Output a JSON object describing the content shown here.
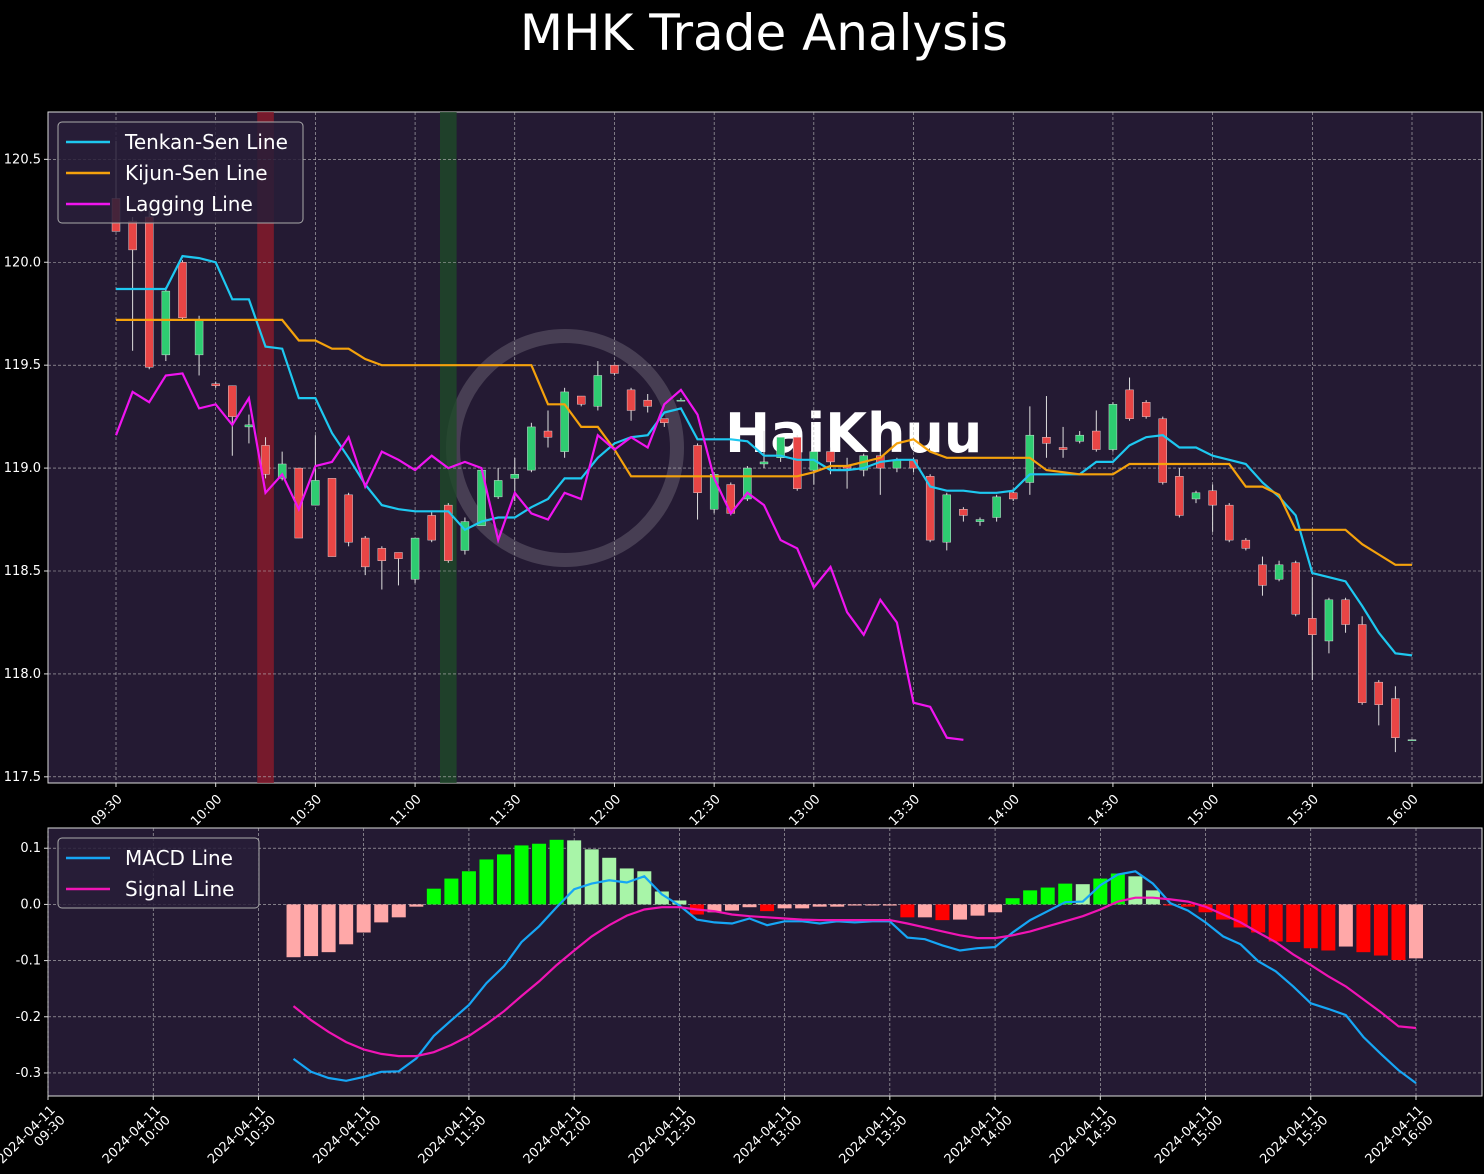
{
  "chart_data": [
    {
      "type": "candlestick",
      "title": "MHK Trade Analysis",
      "watermark": "HaiKhuu",
      "x": [
        "09:30",
        "09:35",
        "09:40",
        "09:45",
        "09:50",
        "09:55",
        "10:00",
        "10:05",
        "10:10",
        "10:15",
        "10:20",
        "10:25",
        "10:30",
        "10:35",
        "10:40",
        "10:45",
        "10:50",
        "10:55",
        "11:00",
        "11:05",
        "11:10",
        "11:15",
        "11:20",
        "11:25",
        "11:30",
        "11:35",
        "11:40",
        "11:45",
        "11:50",
        "11:55",
        "12:00",
        "12:05",
        "12:10",
        "12:15",
        "12:20",
        "12:25",
        "12:30",
        "12:35",
        "12:40",
        "12:45",
        "12:50",
        "12:55",
        "13:00",
        "13:05",
        "13:10",
        "13:15",
        "13:20",
        "13:25",
        "13:30",
        "13:35",
        "13:40",
        "13:45",
        "13:50",
        "13:55",
        "14:00",
        "14:05",
        "14:10",
        "14:15",
        "14:20",
        "14:25",
        "14:30",
        "14:35",
        "14:40",
        "14:45",
        "14:50",
        "14:55",
        "15:00",
        "15:05",
        "15:10",
        "15:15",
        "15:20",
        "15:25",
        "15:30",
        "15:35",
        "15:40",
        "15:45",
        "15:50",
        "15:55",
        "16:00"
      ],
      "open": [
        120.31,
        120.2,
        120.22,
        119.55,
        120.0,
        119.55,
        119.41,
        119.4,
        119.2,
        119.11,
        118.95,
        119.0,
        118.82,
        118.95,
        118.87,
        118.66,
        118.61,
        118.59,
        118.46,
        118.77,
        118.82,
        118.6,
        118.72,
        118.86,
        118.95,
        118.99,
        119.18,
        119.08,
        119.35,
        119.3,
        119.5,
        119.38,
        119.33,
        119.24,
        119.33,
        119.11,
        118.8,
        118.92,
        118.85,
        119.02,
        119.05,
        119.15,
        118.99,
        119.08,
        119.01,
        118.99,
        119.06,
        119.0,
        119.04,
        118.96,
        118.64,
        118.8,
        118.74,
        118.76,
        118.88,
        118.93,
        119.15,
        119.1,
        119.13,
        119.18,
        119.09,
        119.38,
        119.32,
        119.24,
        118.96,
        118.85,
        118.89,
        118.82,
        118.65,
        118.53,
        118.46,
        118.54,
        118.27,
        118.16,
        118.36,
        118.24,
        117.96,
        117.88,
        117.68
      ],
      "high": [
        120.59,
        120.22,
        120.25,
        119.88,
        120.01,
        119.74,
        119.42,
        119.4,
        119.26,
        119.15,
        119.08,
        119.0,
        119.16,
        118.95,
        118.88,
        118.67,
        118.62,
        118.59,
        118.66,
        118.79,
        118.83,
        118.76,
        119.0,
        119.0,
        119.05,
        119.22,
        119.28,
        119.39,
        119.35,
        119.52,
        119.5,
        119.39,
        119.36,
        119.24,
        119.34,
        119.12,
        118.98,
        118.93,
        119.01,
        119.18,
        119.15,
        119.16,
        119.09,
        119.1,
        119.05,
        119.07,
        119.08,
        119.05,
        119.05,
        118.97,
        118.88,
        118.81,
        118.76,
        118.87,
        118.9,
        119.3,
        119.35,
        119.2,
        119.18,
        119.28,
        119.32,
        119.44,
        119.33,
        119.25,
        119.0,
        118.89,
        118.92,
        118.83,
        118.66,
        118.57,
        118.55,
        118.55,
        118.47,
        118.37,
        118.37,
        118.28,
        117.97,
        117.94,
        117.68
      ],
      "low": [
        120.15,
        119.57,
        119.48,
        119.52,
        119.72,
        119.45,
        119.39,
        119.06,
        119.12,
        118.95,
        118.94,
        118.66,
        118.82,
        118.57,
        118.62,
        118.48,
        118.41,
        118.43,
        118.44,
        118.64,
        118.54,
        118.58,
        118.72,
        118.85,
        118.84,
        118.98,
        119.1,
        119.05,
        119.3,
        119.28,
        119.45,
        119.23,
        119.27,
        119.2,
        119.33,
        118.75,
        118.78,
        118.77,
        118.84,
        119.0,
        119.03,
        118.89,
        118.92,
        118.97,
        118.9,
        118.96,
        118.87,
        118.98,
        118.98,
        118.64,
        118.6,
        118.74,
        118.72,
        118.74,
        118.84,
        118.87,
        119.05,
        119.05,
        119.12,
        119.08,
        119.08,
        119.23,
        119.24,
        118.92,
        118.76,
        118.83,
        118.69,
        118.64,
        118.6,
        118.38,
        118.45,
        118.28,
        117.97,
        118.1,
        118.2,
        117.85,
        117.75,
        117.62,
        117.68
      ],
      "close": [
        120.15,
        120.06,
        119.49,
        119.86,
        119.73,
        119.72,
        119.4,
        119.25,
        119.21,
        118.97,
        119.02,
        118.66,
        118.94,
        118.57,
        118.64,
        118.52,
        118.55,
        118.56,
        118.66,
        118.65,
        118.55,
        118.74,
        118.99,
        118.94,
        118.97,
        119.2,
        119.15,
        119.37,
        119.31,
        119.45,
        119.46,
        119.28,
        119.3,
        119.22,
        119.33,
        118.88,
        118.97,
        118.78,
        119.0,
        119.03,
        119.15,
        118.9,
        119.08,
        119.03,
        119.0,
        119.06,
        119.0,
        119.04,
        119.0,
        118.65,
        118.87,
        118.77,
        118.75,
        118.86,
        118.85,
        119.16,
        119.12,
        119.09,
        119.16,
        119.09,
        119.31,
        119.24,
        119.25,
        118.93,
        118.77,
        118.88,
        118.82,
        118.65,
        118.61,
        118.43,
        118.53,
        118.29,
        118.19,
        118.36,
        118.24,
        117.86,
        117.85,
        117.69,
        117.68
      ],
      "up_color": "#2ecc71",
      "down_color": "#e84545",
      "series": [
        {
          "name": "Tenkan-Sen Line",
          "color": "#1ec8f0",
          "values": [
            119.87,
            119.87,
            119.87,
            119.87,
            120.03,
            120.02,
            120.0,
            119.82,
            119.82,
            119.59,
            119.58,
            119.34,
            119.34,
            119.17,
            119.05,
            118.92,
            118.82,
            118.8,
            118.79,
            118.79,
            118.79,
            118.7,
            118.74,
            118.76,
            118.76,
            118.81,
            118.85,
            118.95,
            118.95,
            119.05,
            119.12,
            119.15,
            119.16,
            119.27,
            119.29,
            119.14,
            119.14,
            119.14,
            119.13,
            119.06,
            119.06,
            119.04,
            119.04,
            118.99,
            118.99,
            119.0,
            119.03,
            119.04,
            119.04,
            118.91,
            118.89,
            118.89,
            118.88,
            118.88,
            118.89,
            118.97,
            118.97,
            118.97,
            118.97,
            119.03,
            119.03,
            119.11,
            119.15,
            119.16,
            119.1,
            119.1,
            119.06,
            119.04,
            119.02,
            118.93,
            118.86,
            118.77,
            118.49,
            118.47,
            118.45,
            118.33,
            118.2,
            118.1,
            118.09
          ]
        },
        {
          "name": "Kijun-Sen Line",
          "color": "#f5a20c",
          "values": [
            119.72,
            119.72,
            119.72,
            119.72,
            119.72,
            119.72,
            119.72,
            119.72,
            119.72,
            119.72,
            119.72,
            119.62,
            119.62,
            119.58,
            119.58,
            119.53,
            119.5,
            119.5,
            119.5,
            119.5,
            119.5,
            119.5,
            119.5,
            119.5,
            119.5,
            119.5,
            119.31,
            119.31,
            119.2,
            119.2,
            119.09,
            118.96,
            118.96,
            118.96,
            118.96,
            118.96,
            118.96,
            118.96,
            118.96,
            118.96,
            118.96,
            118.96,
            118.98,
            119.01,
            119.01,
            119.03,
            119.05,
            119.12,
            119.14,
            119.08,
            119.05,
            119.05,
            119.05,
            119.05,
            119.05,
            119.05,
            118.99,
            118.98,
            118.97,
            118.97,
            118.97,
            119.02,
            119.02,
            119.02,
            119.02,
            119.02,
            119.02,
            119.02,
            118.91,
            118.91,
            118.87,
            118.7,
            118.7,
            118.7,
            118.7,
            118.63,
            118.58,
            118.53,
            118.53
          ]
        },
        {
          "name": "Lagging Line",
          "color": "#f014f0",
          "values": [
            119.16,
            119.37,
            119.32,
            119.45,
            119.46,
            119.29,
            119.31,
            119.21,
            119.34,
            118.88,
            118.97,
            118.8,
            119.01,
            119.03,
            119.15,
            118.91,
            119.08,
            119.04,
            118.99,
            119.06,
            119.0,
            119.03,
            119.0,
            118.65,
            118.88,
            118.78,
            118.75,
            118.88,
            118.85,
            119.16,
            119.09,
            119.15,
            119.1,
            119.31,
            119.38,
            119.26,
            118.95,
            118.78,
            118.88,
            118.82,
            118.65,
            118.61,
            118.42,
            118.52,
            118.3,
            118.19,
            118.36,
            118.25,
            117.86,
            117.84,
            117.69,
            117.68,
            null,
            null,
            null,
            null,
            null,
            null,
            null,
            null,
            null,
            null,
            null,
            null,
            null,
            null,
            null,
            null,
            null,
            null,
            null,
            null,
            null,
            null,
            null,
            null,
            null,
            null,
            null
          ]
        }
      ],
      "highlights": [
        {
          "x": "10:15",
          "color": "#8b1a2b"
        },
        {
          "x": "11:10",
          "color": "#1e4a28"
        }
      ],
      "ylim": [
        117.47,
        120.73
      ],
      "yticks": [
        117.5,
        {
          "value": 118,
          "label": "118.0"
        },
        118.5,
        {
          "value": 119,
          "label": "119.0"
        },
        119.5,
        {
          "value": 120,
          "label": "120.0"
        },
        120.5
      ],
      "xticks": [
        "09:30",
        "10:00",
        "10:30",
        "11:00",
        "11:30",
        "12:00",
        "12:30",
        "13:00",
        "13:30",
        "14:00",
        "14:30",
        "15:00",
        "15:30",
        "16:00"
      ],
      "grid": true,
      "legend": "upper left"
    },
    {
      "type": "macd",
      "date": "2024-04-11",
      "x": [
        "09:30",
        "09:35",
        "09:40",
        "09:45",
        "09:50",
        "09:55",
        "10:00",
        "10:05",
        "10:10",
        "10:15",
        "10:20",
        "10:25",
        "10:30",
        "10:35",
        "10:40",
        "10:45",
        "10:50",
        "10:55",
        "11:00",
        "11:05",
        "11:10",
        "11:15",
        "11:20",
        "11:25",
        "11:30",
        "11:35",
        "11:40",
        "11:45",
        "11:50",
        "11:55",
        "12:00",
        "12:05",
        "12:10",
        "12:15",
        "12:20",
        "12:25",
        "12:30",
        "12:35",
        "12:40",
        "12:45",
        "12:50",
        "12:55",
        "13:00",
        "13:05",
        "13:10",
        "13:15",
        "13:20",
        "13:25",
        "13:30",
        "13:35",
        "13:40",
        "13:45",
        "13:50",
        "13:55",
        "14:00",
        "14:05",
        "14:10",
        "14:15",
        "14:20",
        "14:25",
        "14:30",
        "14:35",
        "14:40",
        "14:45",
        "14:50",
        "14:55",
        "15:00",
        "15:05",
        "15:10",
        "15:15",
        "15:20",
        "15:25",
        "15:30",
        "15:35",
        "15:40",
        "15:45",
        "15:50",
        "15:55",
        "16:00"
      ],
      "histogram": {
        "values": [
          null,
          null,
          null,
          null,
          null,
          null,
          null,
          null,
          null,
          null,
          null,
          null,
          null,
          null,
          -0.094,
          -0.092,
          -0.085,
          -0.071,
          -0.05,
          -0.032,
          -0.023,
          -0.004,
          0.028,
          0.046,
          0.059,
          0.08,
          0.089,
          0.105,
          0.108,
          0.115,
          0.114,
          0.098,
          0.083,
          0.064,
          0.059,
          0.023,
          0.007,
          -0.018,
          -0.014,
          -0.011,
          -0.005,
          -0.012,
          -0.007,
          -0.007,
          -0.004,
          -0.004,
          -0.002,
          -0.002,
          -0.002,
          -0.023,
          -0.023,
          -0.028,
          -0.027,
          -0.02,
          -0.014,
          0.011,
          0.025,
          0.03,
          0.037,
          0.036,
          0.046,
          0.055,
          0.05,
          0.025,
          -0.002,
          -0.004,
          -0.014,
          -0.027,
          -0.041,
          -0.05,
          -0.066,
          -0.067,
          -0.078,
          -0.082,
          -0.075,
          -0.085,
          -0.091,
          -0.099,
          -0.096
        ],
        "colors": {
          "pos_up": "#00ff00",
          "pos_down": "#a8f5a8",
          "neg_down": "#ff0000",
          "neg_up": "#ffa8a8"
        }
      },
      "series": [
        {
          "name": "MACD Line",
          "color": "#16a6f5",
          "values": [
            null,
            null,
            null,
            null,
            null,
            null,
            null,
            null,
            null,
            null,
            null,
            null,
            null,
            null,
            -0.275,
            -0.298,
            -0.309,
            -0.314,
            -0.307,
            -0.298,
            -0.297,
            -0.274,
            -0.234,
            -0.206,
            -0.179,
            -0.14,
            -0.11,
            -0.067,
            -0.039,
            -0.005,
            0.027,
            0.037,
            0.043,
            0.039,
            0.05,
            0.018,
            -0.002,
            -0.027,
            -0.032,
            -0.034,
            -0.025,
            -0.037,
            -0.03,
            -0.03,
            -0.034,
            -0.03,
            -0.032,
            -0.03,
            -0.03,
            -0.059,
            -0.062,
            -0.073,
            -0.082,
            -0.078,
            -0.076,
            -0.05,
            -0.028,
            -0.012,
            0.004,
            0.005,
            0.034,
            0.053,
            0.059,
            0.037,
            0.002,
            -0.011,
            -0.032,
            -0.057,
            -0.071,
            -0.101,
            -0.119,
            -0.146,
            -0.176,
            -0.186,
            -0.197,
            -0.236,
            -0.266,
            -0.295,
            -0.318
          ]
        },
        {
          "name": "Signal Line",
          "color": "#f014b4",
          "values": [
            null,
            null,
            null,
            null,
            null,
            null,
            null,
            null,
            null,
            null,
            null,
            null,
            null,
            null,
            -0.181,
            -0.206,
            -0.227,
            -0.245,
            -0.258,
            -0.266,
            -0.27,
            -0.27,
            -0.263,
            -0.25,
            -0.234,
            -0.213,
            -0.19,
            -0.163,
            -0.137,
            -0.108,
            -0.082,
            -0.057,
            -0.037,
            -0.02,
            -0.009,
            -0.005,
            -0.005,
            -0.009,
            -0.012,
            -0.018,
            -0.021,
            -0.023,
            -0.025,
            -0.027,
            -0.028,
            -0.028,
            -0.028,
            -0.028,
            -0.028,
            -0.034,
            -0.041,
            -0.048,
            -0.055,
            -0.06,
            -0.06,
            -0.055,
            -0.048,
            -0.039,
            -0.03,
            -0.021,
            -0.009,
            0.005,
            0.012,
            0.012,
            0.009,
            0.005,
            -0.004,
            -0.018,
            -0.032,
            -0.05,
            -0.067,
            -0.089,
            -0.108,
            -0.128,
            -0.146,
            -0.169,
            -0.192,
            -0.217,
            -0.22
          ]
        }
      ],
      "ylim": [
        -0.341,
        0.136
      ],
      "yticks": [
        -0.3,
        -0.2,
        -0.1,
        {
          "value": 0,
          "label": "0.0"
        },
        0.1
      ],
      "xticks": [
        "09:30",
        "10:00",
        "10:30",
        "11:00",
        "11:30",
        "12:00",
        "12:30",
        "13:00",
        "13:30",
        "14:00",
        "14:30",
        "15:00",
        "15:30",
        "16:00"
      ],
      "grid": true,
      "legend": "upper left"
    }
  ]
}
